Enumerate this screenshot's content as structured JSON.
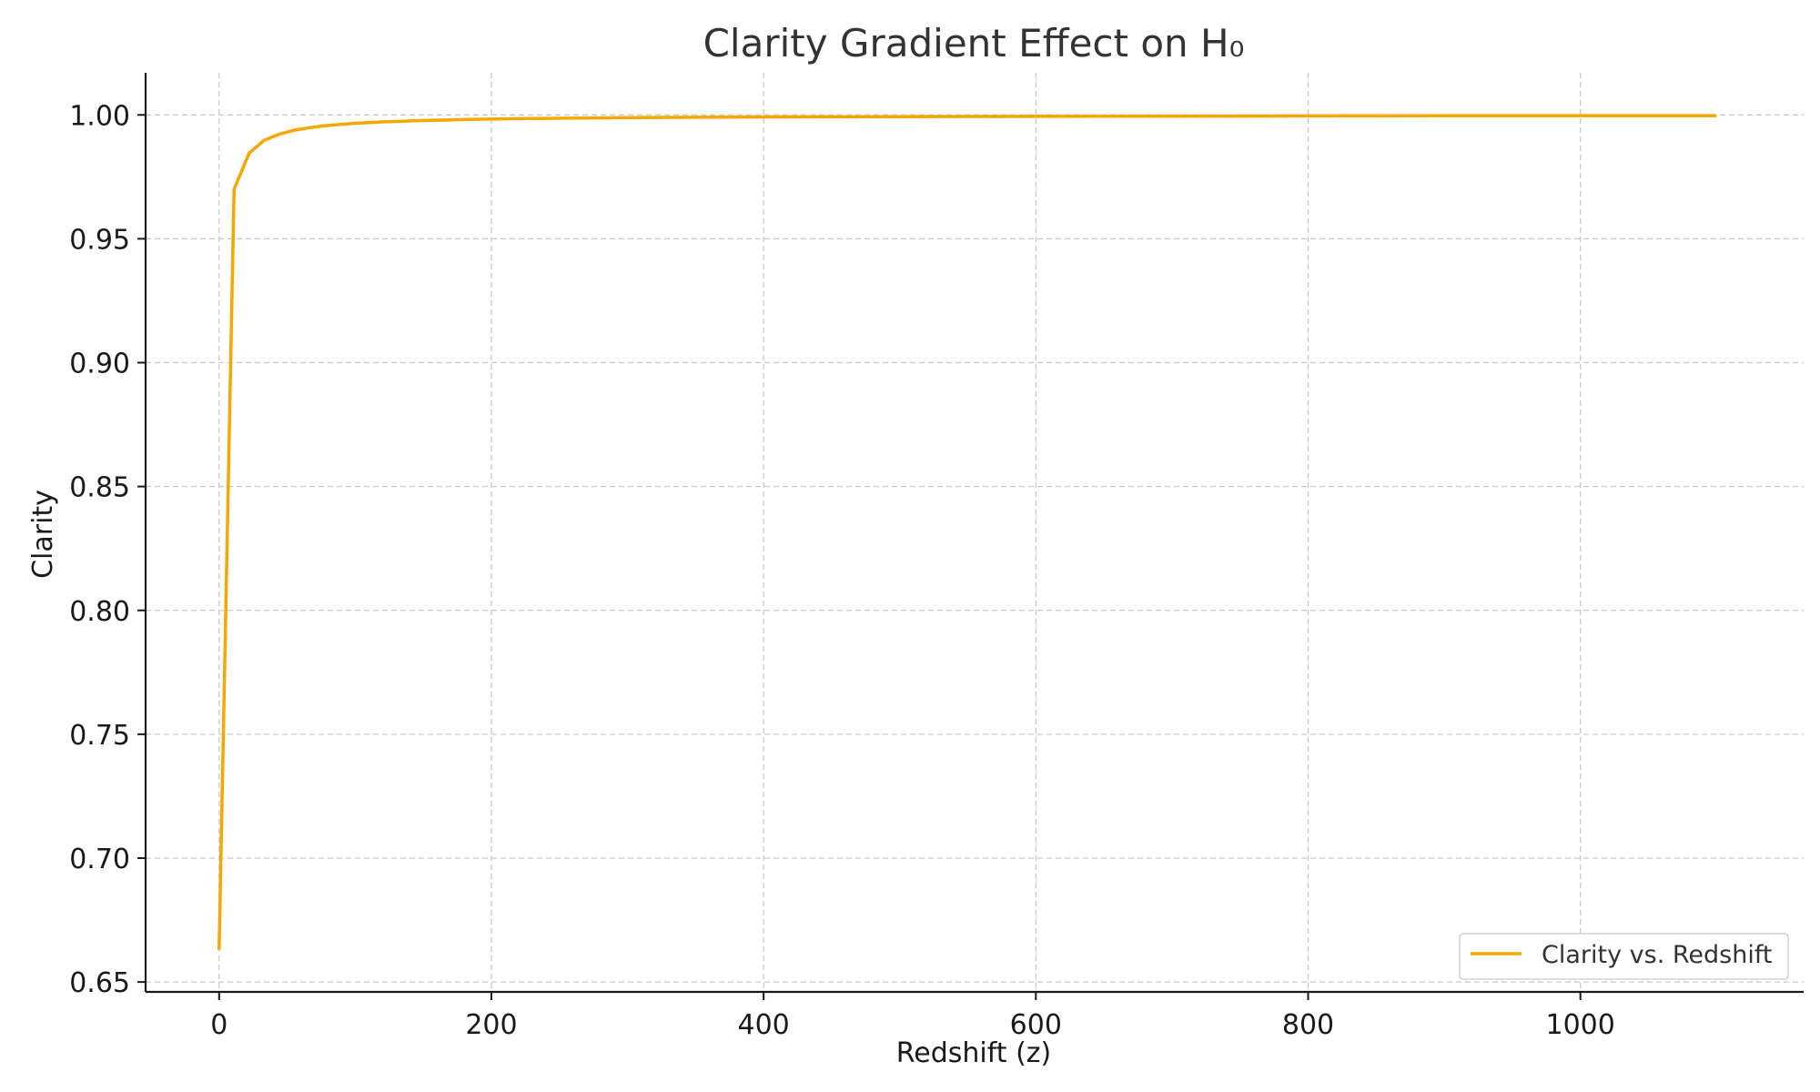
{
  "chart_data": {
    "type": "line",
    "title": "Clarity Gradient Effect on H₀",
    "xlabel": "Redshift (z)",
    "ylabel": "Clarity",
    "xlim": [
      -54,
      1164
    ],
    "ylim": [
      0.646,
      1.017
    ],
    "x_ticks": [
      0,
      200,
      400,
      600,
      800,
      1000
    ],
    "y_ticks": [
      0.65,
      0.7,
      0.75,
      0.8,
      0.85,
      0.9,
      0.95,
      1.0
    ],
    "x_tick_labels": [
      "0",
      "200",
      "400",
      "600",
      "800",
      "1000"
    ],
    "y_tick_labels": [
      "0.65",
      "0.70",
      "0.75",
      "0.80",
      "0.85",
      "0.90",
      "0.95",
      "1.00"
    ],
    "grid": true,
    "legend_position": "lower-right",
    "series": [
      {
        "name": "Clarity vs. Redshift",
        "color": "#F5A700",
        "x": [
          0,
          11,
          22,
          33,
          44,
          55,
          66,
          77,
          88,
          99,
          110,
          121,
          132,
          143,
          154,
          165,
          176,
          187,
          198,
          209,
          220,
          300,
          400,
          500,
          600,
          700,
          800,
          900,
          1000,
          1100
        ],
        "y": [
          0.663,
          0.97,
          0.9845,
          0.9897,
          0.9922,
          0.9938,
          0.9948,
          0.9956,
          0.9961,
          0.9966,
          0.9969,
          0.9972,
          0.9974,
          0.9976,
          0.9978,
          0.9979,
          0.9981,
          0.9982,
          0.9983,
          0.9984,
          0.9985,
          0.9989,
          0.9992,
          0.9993,
          0.9994,
          0.9995,
          0.9996,
          0.9997,
          0.9997,
          0.9997
        ]
      }
    ]
  }
}
